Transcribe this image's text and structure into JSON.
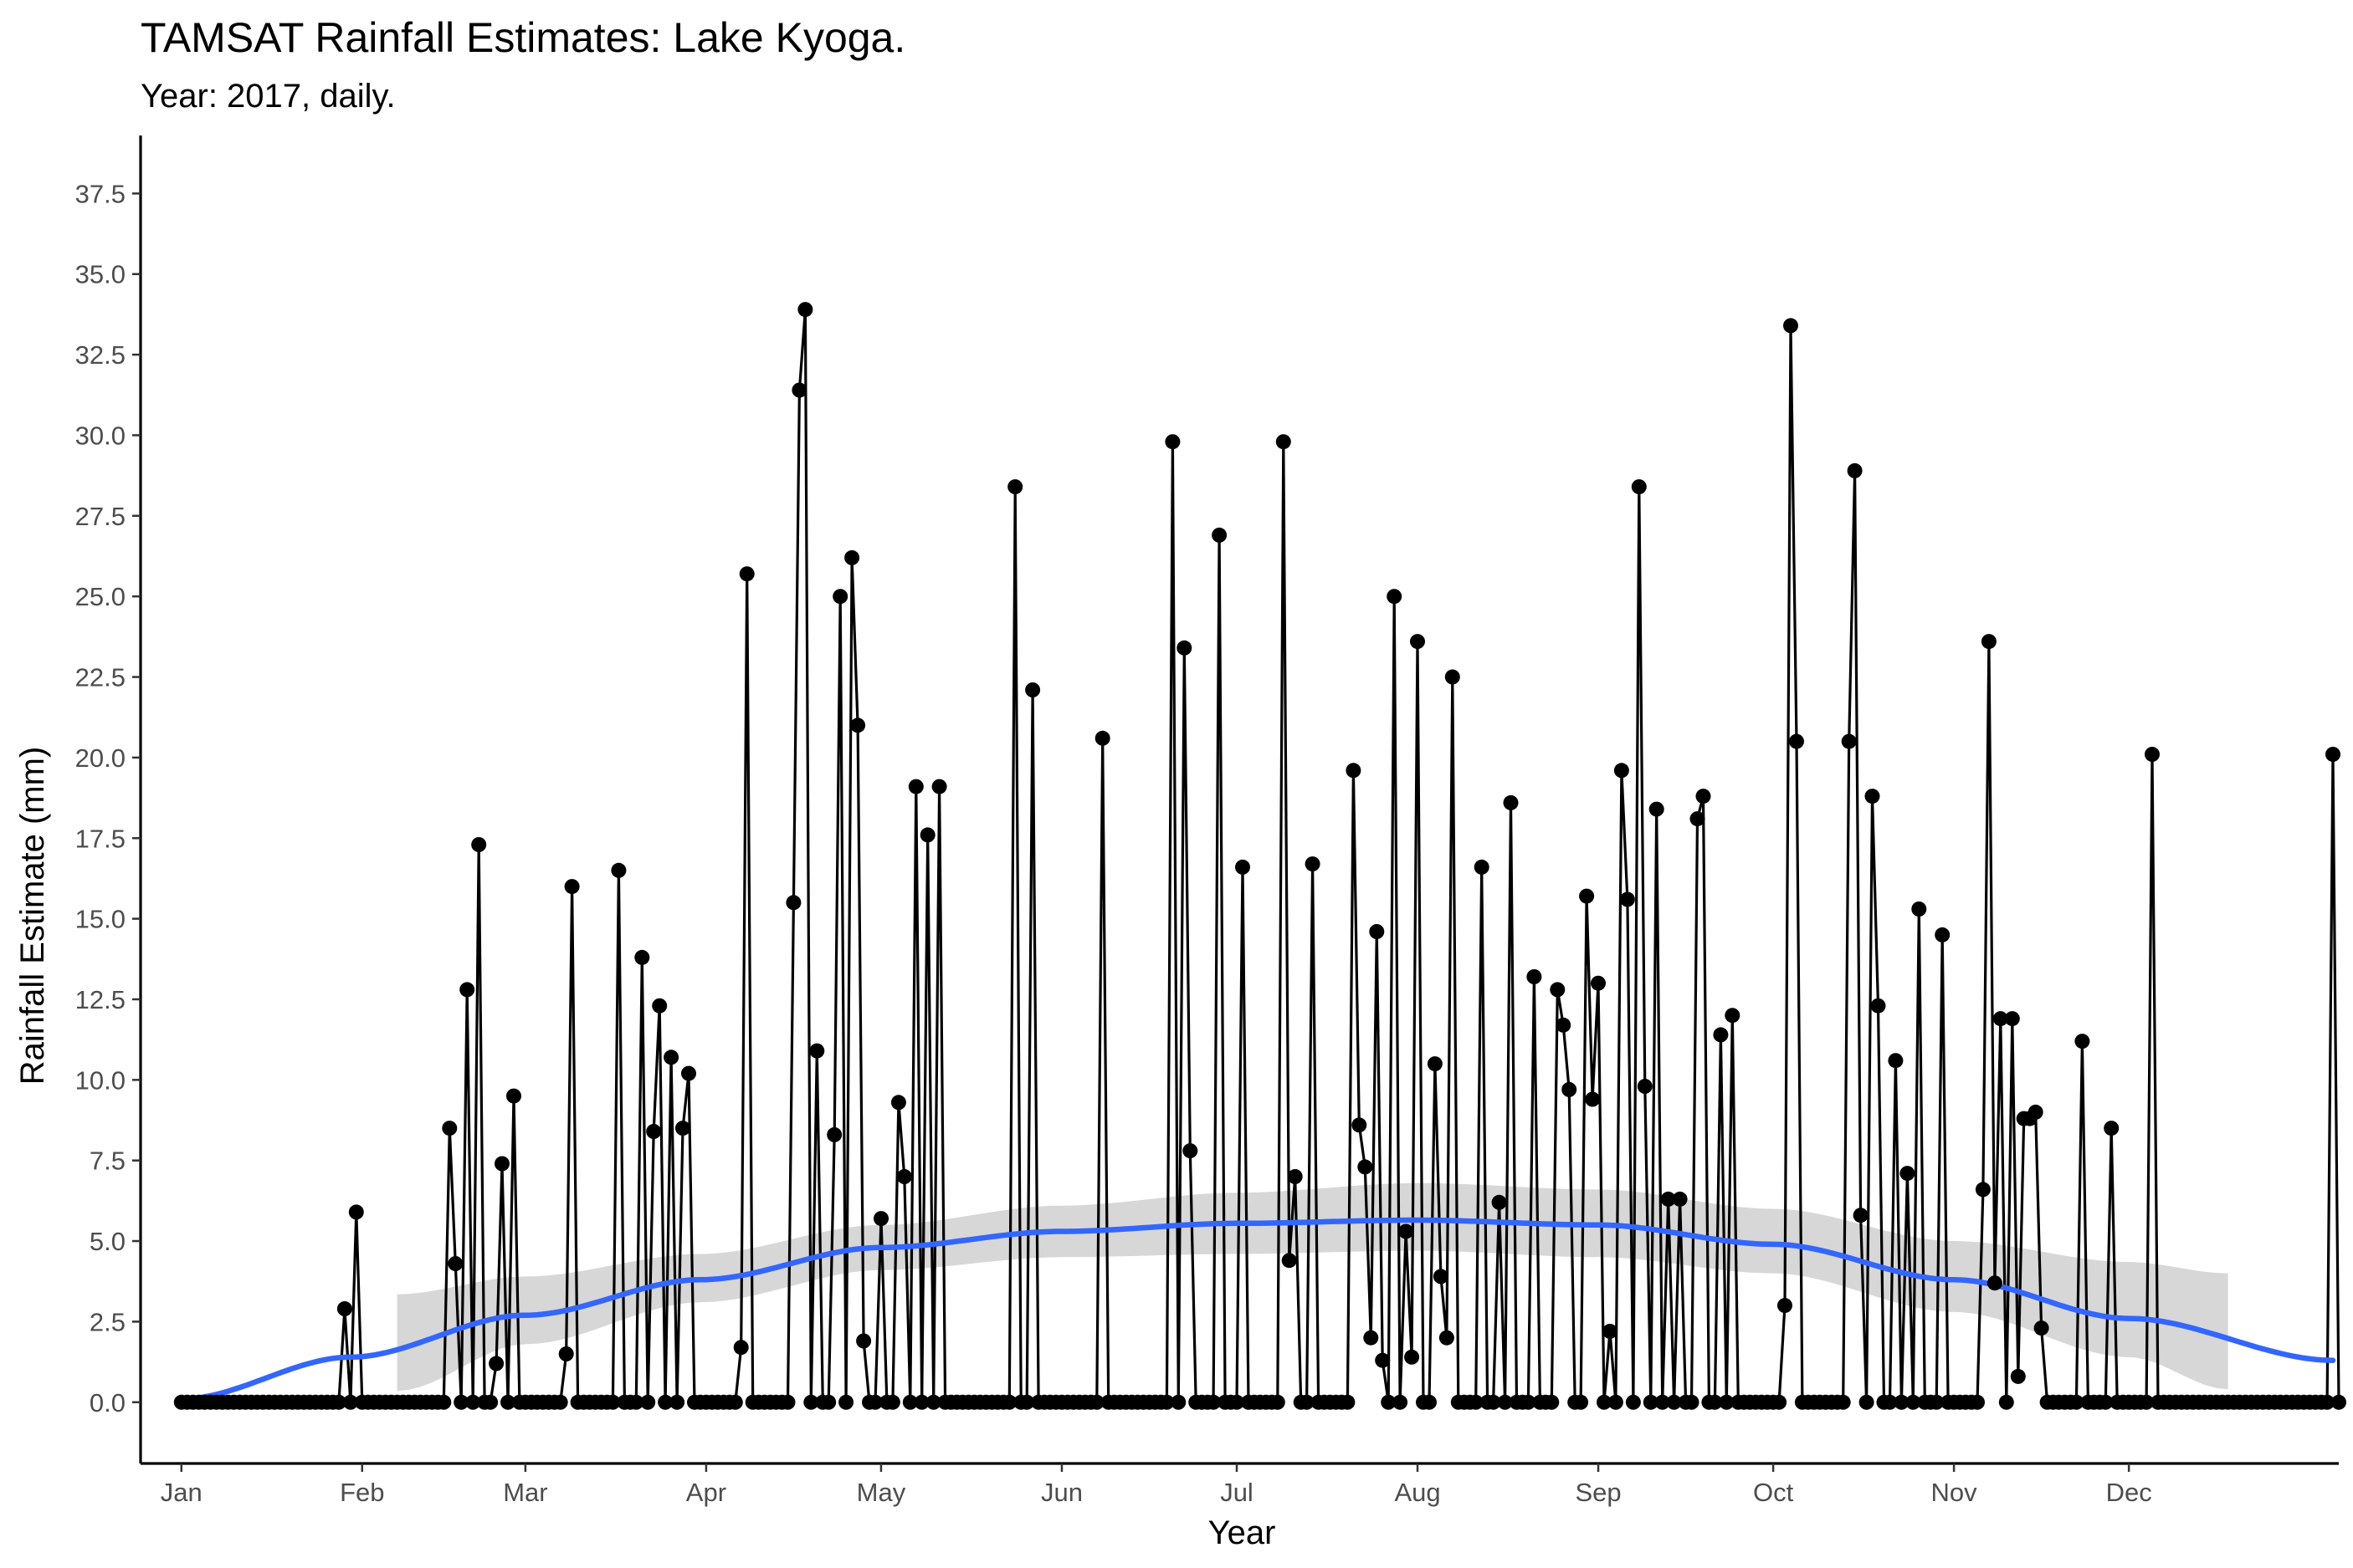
{
  "chart_data": {
    "type": "line",
    "title": "TAMSAT Rainfall Estimates: Lake Kyoga.",
    "subtitle": "Year: 2017, daily.",
    "xlabel": "Year",
    "ylabel": "Rainfall Estimate (mm)",
    "xlim": [
      -6,
      371
    ],
    "ylim": [
      -1.9,
      39.3
    ],
    "grid": false,
    "legend": "none",
    "x_ticks": [
      {
        "day": 1,
        "label": "Jan"
      },
      {
        "day": 32,
        "label": "Feb"
      },
      {
        "day": 60,
        "label": "Mar"
      },
      {
        "day": 91,
        "label": "Apr"
      },
      {
        "day": 121,
        "label": "May"
      },
      {
        "day": 152,
        "label": "Jun"
      },
      {
        "day": 182,
        "label": "Jul"
      },
      {
        "day": 213,
        "label": "Aug"
      },
      {
        "day": 244,
        "label": "Sep"
      },
      {
        "day": 274,
        "label": "Oct"
      },
      {
        "day": 305,
        "label": "Nov"
      },
      {
        "day": 335,
        "label": "Dec"
      }
    ],
    "y_ticks": [
      "0.0",
      "2.5",
      "5.0",
      "7.5",
      "10.0",
      "12.5",
      "15.0",
      "17.5",
      "20.0",
      "22.5",
      "25.0",
      "27.5",
      "30.0",
      "32.5",
      "35.0",
      "37.5"
    ],
    "series": [
      {
        "x_unit": "day of year 2017",
        "rain_days": [
          {
            "day": 29,
            "value": 2.9
          },
          {
            "day": 31,
            "value": 5.9
          },
          {
            "day": 47,
            "value": 8.5
          },
          {
            "day": 48,
            "value": 4.3
          },
          {
            "day": 50,
            "value": 12.8
          },
          {
            "day": 52,
            "value": 17.3
          },
          {
            "day": 55,
            "value": 1.2
          },
          {
            "day": 56,
            "value": 7.4
          },
          {
            "day": 58,
            "value": 9.5
          },
          {
            "day": 67,
            "value": 1.5
          },
          {
            "day": 68,
            "value": 16.0
          },
          {
            "day": 76,
            "value": 16.5
          },
          {
            "day": 80,
            "value": 13.8
          },
          {
            "day": 82,
            "value": 8.4
          },
          {
            "day": 83,
            "value": 12.3
          },
          {
            "day": 85,
            "value": 10.7
          },
          {
            "day": 87,
            "value": 8.5
          },
          {
            "day": 88,
            "value": 10.2
          },
          {
            "day": 97,
            "value": 1.7
          },
          {
            "day": 98,
            "value": 25.7
          },
          {
            "day": 106,
            "value": 15.5
          },
          {
            "day": 107,
            "value": 31.4
          },
          {
            "day": 108,
            "value": 33.9
          },
          {
            "day": 110,
            "value": 10.9
          },
          {
            "day": 113,
            "value": 8.3
          },
          {
            "day": 114,
            "value": 25.0
          },
          {
            "day": 116,
            "value": 26.2
          },
          {
            "day": 117,
            "value": 21.0
          },
          {
            "day": 118,
            "value": 1.9
          },
          {
            "day": 121,
            "value": 5.7
          },
          {
            "day": 124,
            "value": 9.3
          },
          {
            "day": 125,
            "value": 7.0
          },
          {
            "day": 127,
            "value": 19.1
          },
          {
            "day": 129,
            "value": 17.6
          },
          {
            "day": 131,
            "value": 19.1
          },
          {
            "day": 144,
            "value": 28.4
          },
          {
            "day": 147,
            "value": 22.1
          },
          {
            "day": 159,
            "value": 20.6
          },
          {
            "day": 171,
            "value": 29.8
          },
          {
            "day": 173,
            "value": 23.4
          },
          {
            "day": 174,
            "value": 7.8
          },
          {
            "day": 179,
            "value": 26.9
          },
          {
            "day": 183,
            "value": 16.6
          },
          {
            "day": 190,
            "value": 29.8
          },
          {
            "day": 191,
            "value": 4.4
          },
          {
            "day": 192,
            "value": 7.0
          },
          {
            "day": 195,
            "value": 16.7
          },
          {
            "day": 202,
            "value": 19.6
          },
          {
            "day": 203,
            "value": 8.6
          },
          {
            "day": 204,
            "value": 7.3
          },
          {
            "day": 205,
            "value": 2.0
          },
          {
            "day": 206,
            "value": 14.6
          },
          {
            "day": 207,
            "value": 1.3
          },
          {
            "day": 209,
            "value": 25.0
          },
          {
            "day": 211,
            "value": 5.3
          },
          {
            "day": 212,
            "value": 1.4
          },
          {
            "day": 213,
            "value": 23.6
          },
          {
            "day": 216,
            "value": 10.5
          },
          {
            "day": 217,
            "value": 3.9
          },
          {
            "day": 218,
            "value": 2.0
          },
          {
            "day": 219,
            "value": 22.5
          },
          {
            "day": 224,
            "value": 16.6
          },
          {
            "day": 227,
            "value": 6.2
          },
          {
            "day": 229,
            "value": 18.6
          },
          {
            "day": 233,
            "value": 13.2
          },
          {
            "day": 237,
            "value": 12.8
          },
          {
            "day": 238,
            "value": 11.7
          },
          {
            "day": 239,
            "value": 9.7
          },
          {
            "day": 242,
            "value": 15.7
          },
          {
            "day": 243,
            "value": 9.4
          },
          {
            "day": 244,
            "value": 13.0
          },
          {
            "day": 246,
            "value": 2.2
          },
          {
            "day": 248,
            "value": 19.6
          },
          {
            "day": 249,
            "value": 15.6
          },
          {
            "day": 251,
            "value": 28.4
          },
          {
            "day": 252,
            "value": 9.8
          },
          {
            "day": 254,
            "value": 18.4
          },
          {
            "day": 256,
            "value": 6.3
          },
          {
            "day": 258,
            "value": 6.3
          },
          {
            "day": 261,
            "value": 18.1
          },
          {
            "day": 262,
            "value": 18.8
          },
          {
            "day": 265,
            "value": 11.4
          },
          {
            "day": 267,
            "value": 12.0
          },
          {
            "day": 276,
            "value": 3.0
          },
          {
            "day": 277,
            "value": 33.4
          },
          {
            "day": 278,
            "value": 20.5
          },
          {
            "day": 287,
            "value": 20.5
          },
          {
            "day": 288,
            "value": 28.9
          },
          {
            "day": 289,
            "value": 5.8
          },
          {
            "day": 291,
            "value": 18.8
          },
          {
            "day": 292,
            "value": 12.3
          },
          {
            "day": 295,
            "value": 10.6
          },
          {
            "day": 297,
            "value": 7.1
          },
          {
            "day": 299,
            "value": 15.3
          },
          {
            "day": 303,
            "value": 14.5
          },
          {
            "day": 310,
            "value": 6.6
          },
          {
            "day": 311,
            "value": 23.6
          },
          {
            "day": 312,
            "value": 3.7
          },
          {
            "day": 313,
            "value": 11.9
          },
          {
            "day": 315,
            "value": 11.9
          },
          {
            "day": 316,
            "value": 0.8
          },
          {
            "day": 317,
            "value": 8.8
          },
          {
            "day": 318,
            "value": 8.8
          },
          {
            "day": 319,
            "value": 9.0
          },
          {
            "day": 320,
            "value": 2.3
          },
          {
            "day": 327,
            "value": 11.2
          },
          {
            "day": 332,
            "value": 8.5
          },
          {
            "day": 339,
            "value": 20.1
          },
          {
            "day": 370,
            "value": 20.1
          }
        ],
        "all_other_days_value": 0.0,
        "day_range": [
          1,
          371
        ]
      }
    ],
    "smooth": {
      "method": "loess",
      "color": "#3366FF",
      "fit": [
        {
          "day": 1,
          "value": 0.1
        },
        {
          "day": 30,
          "value": 1.4
        },
        {
          "day": 60,
          "value": 2.7
        },
        {
          "day": 90,
          "value": 3.8
        },
        {
          "day": 121,
          "value": 4.8
        },
        {
          "day": 152,
          "value": 5.3
        },
        {
          "day": 182,
          "value": 5.55
        },
        {
          "day": 213,
          "value": 5.65
        },
        {
          "day": 244,
          "value": 5.5
        },
        {
          "day": 274,
          "value": 4.9
        },
        {
          "day": 305,
          "value": 3.8
        },
        {
          "day": 335,
          "value": 2.6
        },
        {
          "day": 370,
          "value": 1.3
        }
      ],
      "band": {
        "fill": "#d3d3d3",
        "day_range": [
          38,
          352
        ],
        "lower": [
          {
            "day": 38,
            "value": 0.35
          },
          {
            "day": 60,
            "value": 1.8
          },
          {
            "day": 90,
            "value": 3.1
          },
          {
            "day": 121,
            "value": 4.1
          },
          {
            "day": 152,
            "value": 4.5
          },
          {
            "day": 182,
            "value": 4.6
          },
          {
            "day": 213,
            "value": 4.7
          },
          {
            "day": 244,
            "value": 4.5
          },
          {
            "day": 274,
            "value": 4.0
          },
          {
            "day": 305,
            "value": 2.8
          },
          {
            "day": 335,
            "value": 1.4
          },
          {
            "day": 352,
            "value": 0.4
          }
        ],
        "upper": [
          {
            "day": 38,
            "value": 3.35
          },
          {
            "day": 60,
            "value": 3.9
          },
          {
            "day": 90,
            "value": 4.6
          },
          {
            "day": 121,
            "value": 5.5
          },
          {
            "day": 152,
            "value": 6.1
          },
          {
            "day": 182,
            "value": 6.5
          },
          {
            "day": 213,
            "value": 6.8
          },
          {
            "day": 244,
            "value": 6.6
          },
          {
            "day": 274,
            "value": 6.0
          },
          {
            "day": 305,
            "value": 5.0
          },
          {
            "day": 335,
            "value": 4.35
          },
          {
            "day": 352,
            "value": 4.0
          }
        ]
      }
    },
    "colors": {
      "line": "#000000",
      "points": "#000000",
      "axis": "#000000",
      "tick_label": "#4d4d4d"
    }
  }
}
